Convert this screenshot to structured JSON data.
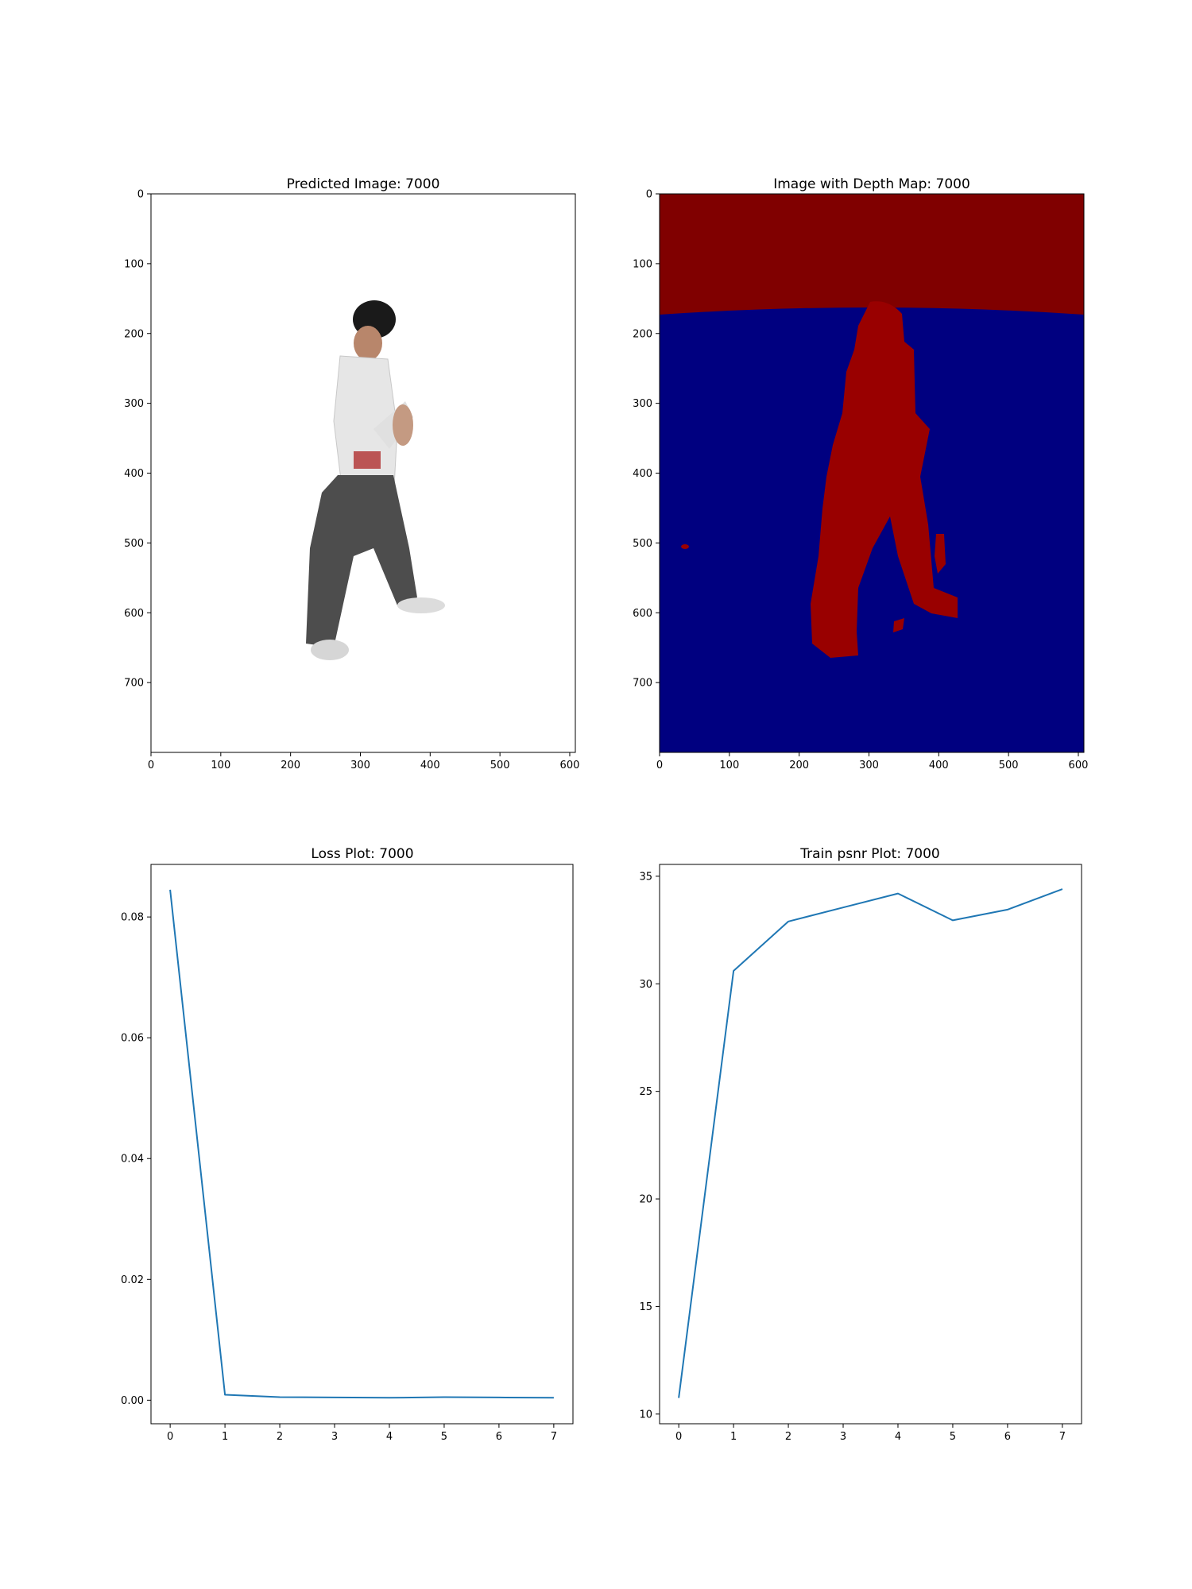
{
  "figure": {
    "panels": [
      {
        "title": "Predicted Image: 7000"
      },
      {
        "title": "Image with Depth Map: 7000"
      },
      {
        "title": "Loss Plot: 7000"
      },
      {
        "title": "Train psnr Plot: 7000"
      }
    ]
  },
  "chart_data": [
    {
      "type": "image",
      "title": "Predicted Image: 7000",
      "xlim": [
        0,
        608
      ],
      "ylim": [
        800,
        0
      ],
      "xticks": [
        0,
        100,
        200,
        300,
        400,
        500,
        600
      ],
      "yticks": [
        0,
        100,
        200,
        300,
        400,
        500,
        600,
        700
      ],
      "content": "rendered person in martial-arts stance on white background",
      "colors": {
        "background": "#ffffff",
        "shirt": "#e6e6e6",
        "pants": "#4d4d4d",
        "hat": "#1a1a1a",
        "skin": "#b8866b"
      }
    },
    {
      "type": "heatmap",
      "title": "Image with Depth Map: 7000",
      "xlim": [
        0,
        608
      ],
      "ylim": [
        800,
        0
      ],
      "xticks": [
        0,
        100,
        200,
        300,
        400,
        500,
        600
      ],
      "yticks": [
        0,
        100,
        200,
        300,
        400,
        500,
        600,
        700
      ],
      "colors": {
        "far_region": "#800000",
        "near_region": "#000080",
        "figure": "#990000"
      }
    },
    {
      "type": "line",
      "title": "Loss Plot: 7000",
      "x": [
        0,
        1,
        2,
        3,
        4,
        5,
        6,
        7
      ],
      "series": [
        {
          "values": [
            0.0845,
            0.0009,
            0.0005,
            0.00045,
            0.0004,
            0.0005,
            0.00045,
            0.0004
          ],
          "color": "#1f77b4"
        }
      ],
      "xlim": [
        -0.35,
        7.35
      ],
      "ylim": [
        -0.0039,
        0.0887
      ],
      "xticks": [
        0,
        1,
        2,
        3,
        4,
        5,
        6,
        7
      ],
      "yticks": [
        0.0,
        0.02,
        0.04,
        0.06,
        0.08
      ],
      "ytick_labels": [
        "0.00",
        "0.02",
        "0.04",
        "0.06",
        "0.08"
      ]
    },
    {
      "type": "line",
      "title": "Train psnr Plot: 7000",
      "x": [
        0,
        1,
        2,
        3,
        4,
        5,
        6,
        7
      ],
      "series": [
        {
          "values": [
            10.75,
            30.6,
            32.9,
            33.55,
            34.2,
            32.95,
            33.45,
            34.4
          ],
          "color": "#1f77b4"
        }
      ],
      "xlim": [
        -0.35,
        7.35
      ],
      "ylim": [
        9.55,
        35.55
      ],
      "xticks": [
        0,
        1,
        2,
        3,
        4,
        5,
        6,
        7
      ],
      "yticks": [
        10,
        15,
        20,
        25,
        30,
        35
      ]
    }
  ]
}
